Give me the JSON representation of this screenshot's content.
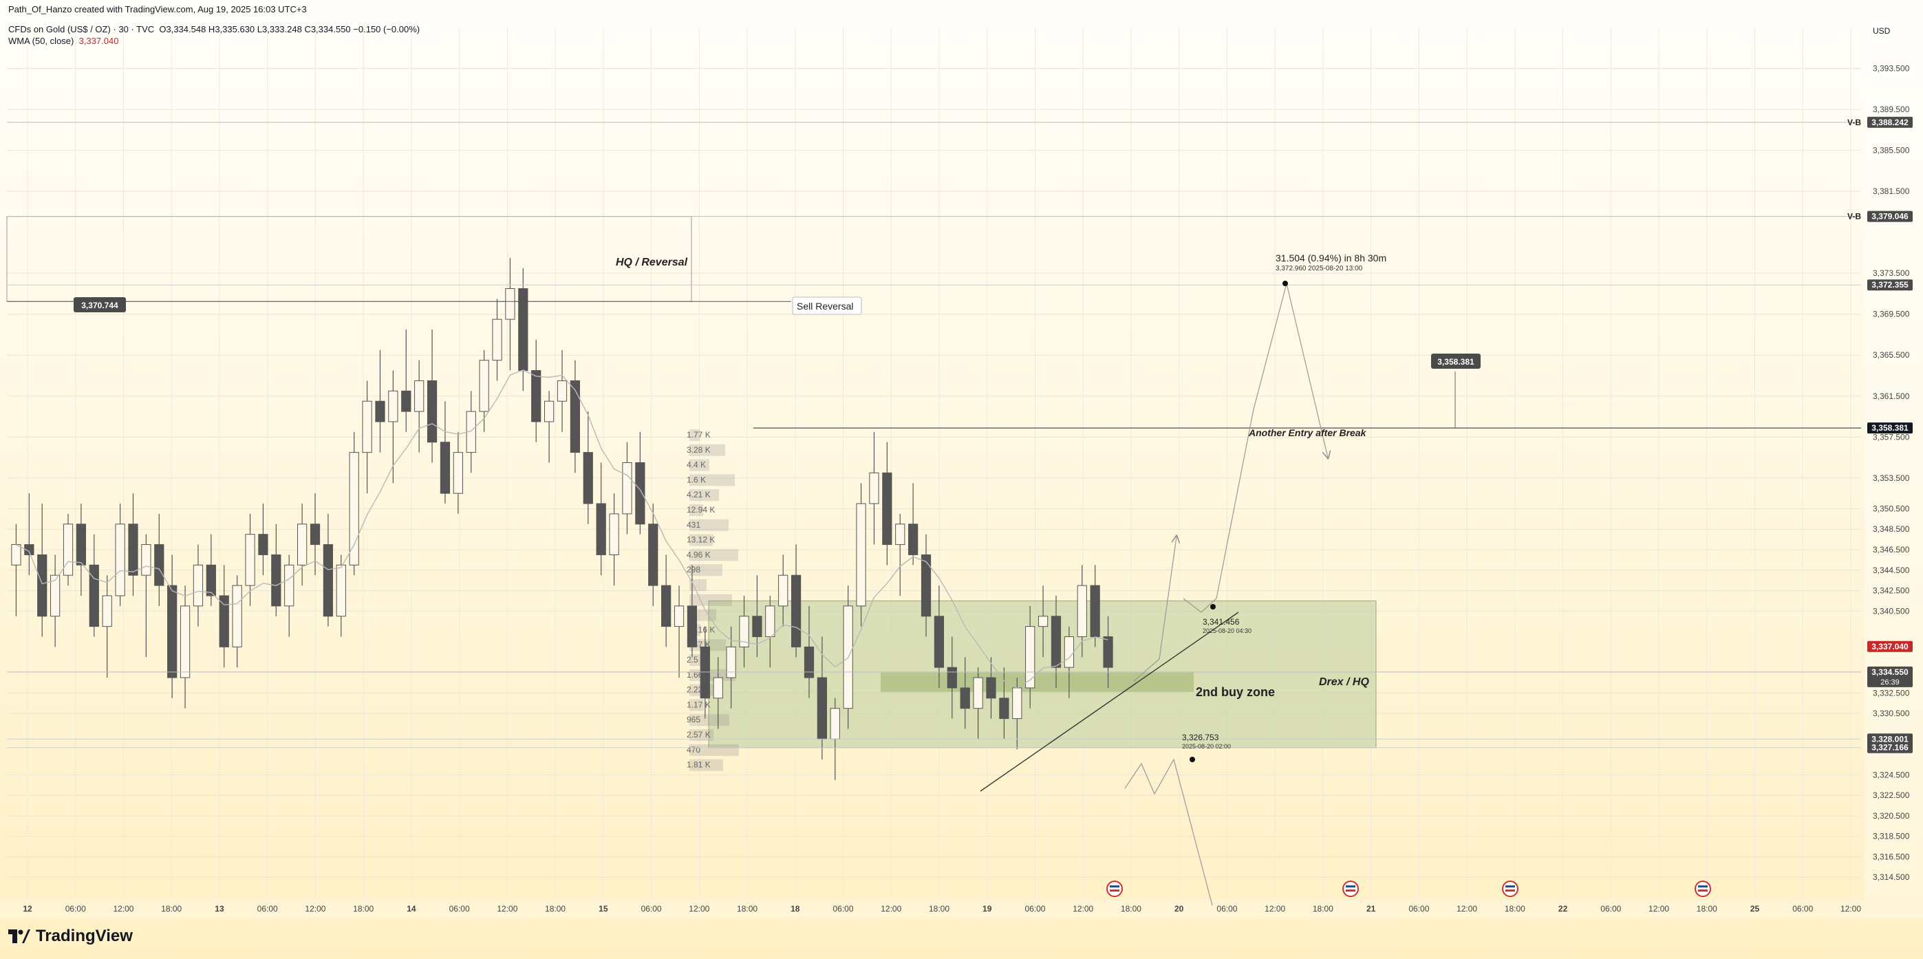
{
  "header": {
    "attribution": "Path_Of_Hanzo created with TradingView.com, Aug 19, 2025 16:03 UTC+3",
    "symbol": "CFDs on Gold (US$ / OZ) · 30 · TVC",
    "ohlc": "O3,334.548  H3,335.630  L3,333.248  C3,334.550  −0.150 (−0.00%)",
    "indicator_label": "WMA (50, close)",
    "indicator_value": "3,337.040"
  },
  "currency": "USD",
  "brand": "TradingView",
  "colors": {
    "bg_top": "#fffefb",
    "bg_bottom": "#fff0c4",
    "candle": "#555555",
    "wma": "#b9b9b9",
    "zone_fill": "#c5d3a4",
    "zone_stroke": "#9aab72",
    "price_red": "#c62828",
    "label_dark": "#4a4a4a"
  },
  "chart_data": {
    "type": "candlestick",
    "symbol": "CFDs on Gold (US$ / OZ)",
    "interval": "30",
    "ylim": [
      3312.5,
      3397.5
    ],
    "y_ticks": [
      3393.5,
      3389.5,
      3385.5,
      3381.5,
      3373.5,
      3369.5,
      3365.5,
      3361.5,
      3357.5,
      3353.5,
      3350.5,
      3348.5,
      3346.5,
      3344.5,
      3342.5,
      3340.5,
      3332.5,
      3330.5,
      3324.5,
      3322.5,
      3320.5,
      3318.5,
      3316.5,
      3314.5
    ],
    "x_ticks": [
      "12",
      "06:00",
      "12:00",
      "18:00",
      "13",
      "06:00",
      "12:00",
      "18:00",
      "14",
      "06:00",
      "12:00",
      "18:00",
      "15",
      "06:00",
      "12:00",
      "18:00",
      "18",
      "06:00",
      "12:00",
      "18:00",
      "19",
      "06:00",
      "12:00",
      "18:00",
      "20",
      "06:00",
      "12:00",
      "18:00",
      "21",
      "06:00",
      "12:00",
      "18:00",
      "22",
      "06:00",
      "12:00",
      "18:00",
      "25",
      "06:00",
      "12:00"
    ],
    "price_labels": [
      {
        "text": "3,388.242",
        "value": 3388.242,
        "tag": "V-B",
        "style": "dark"
      },
      {
        "text": "3,379.046",
        "value": 3379.046,
        "tag": "V-B",
        "style": "dark"
      },
      {
        "text": "3,372.355",
        "value": 3372.355,
        "style": "dark"
      },
      {
        "text": "3,358.381",
        "value": 3358.381,
        "style": "black"
      },
      {
        "text": "3,337.040",
        "value": 3337.04,
        "style": "red"
      },
      {
        "text": "3,334.550",
        "sub": "26:39",
        "value": 3334.55,
        "style": "dark"
      },
      {
        "text": "3,328.001",
        "value": 3328.001,
        "style": "dark"
      },
      {
        "text": "3,327.166",
        "value": 3327.166,
        "style": "dark"
      }
    ],
    "levels": [
      {
        "name": "sell-reversal-level",
        "value": 3370.744,
        "label": "3,370.744"
      },
      {
        "name": "break-entry-level",
        "value": 3358.381,
        "label": "3,358.381"
      }
    ],
    "annotations": [
      {
        "text": "HQ / Reversal"
      },
      {
        "text": "Sell Reversal"
      },
      {
        "text": "Another Entry after Break"
      },
      {
        "text": "2nd buy zone"
      },
      {
        "text": "Drex / HQ"
      }
    ],
    "measure": {
      "text": "31.504 (0.94%) in 8h 30m",
      "sub": "3,372.960    2025-08-20  13:00",
      "value": 3372.96
    },
    "points": [
      {
        "value": "3,341.456",
        "date": "2025-08-20 04:30",
        "price": 3341.456
      },
      {
        "value": "3,326.753",
        "date": "2025-08-20 02:00",
        "price": 3326.753
      }
    ],
    "zone": {
      "top": 3341.5,
      "bottom": 3327.166
    },
    "volume_profile": [
      "1.77 K",
      "3.28 K",
      "4.4 K",
      "1.6 K",
      "4.21 K",
      "12.94 K",
      "431",
      "13.12 K",
      "4.96 K",
      "298",
      "",
      "",
      "",
      "10.16 K",
      "7.47 K",
      "2.5 K",
      "1.66 K",
      "2.22 K",
      "1.17 K",
      "965",
      "2.57 K",
      "470",
      "1.81 K"
    ],
    "candles": [
      [
        3345,
        3349,
        3340,
        3347
      ],
      [
        3347,
        3352,
        3344,
        3346
      ],
      [
        3346,
        3351,
        3338,
        3340
      ],
      [
        3340,
        3346,
        3337,
        3344
      ],
      [
        3344,
        3350,
        3343,
        3349
      ],
      [
        3349,
        3351,
        3342,
        3345
      ],
      [
        3345,
        3348,
        3338,
        3339
      ],
      [
        3339,
        3344,
        3334,
        3342
      ],
      [
        3342,
        3351,
        3341,
        3349
      ],
      [
        3349,
        3352,
        3342,
        3344
      ],
      [
        3344,
        3348,
        3336,
        3347
      ],
      [
        3347,
        3350,
        3341,
        3343
      ],
      [
        3343,
        3346,
        3332,
        3334
      ],
      [
        3334,
        3343,
        3331,
        3341
      ],
      [
        3341,
        3347,
        3339,
        3345
      ],
      [
        3345,
        3348,
        3341,
        3342
      ],
      [
        3342,
        3345,
        3335,
        3337
      ],
      [
        3337,
        3344,
        3335,
        3343
      ],
      [
        3343,
        3350,
        3341,
        3348
      ],
      [
        3348,
        3351,
        3344,
        3346
      ],
      [
        3346,
        3349,
        3340,
        3341
      ],
      [
        3341,
        3346,
        3338,
        3345
      ],
      [
        3345,
        3351,
        3343,
        3349
      ],
      [
        3349,
        3352,
        3344,
        3347
      ],
      [
        3347,
        3350,
        3339,
        3340
      ],
      [
        3340,
        3346,
        3338,
        3345
      ],
      [
        3345,
        3358,
        3344,
        3356
      ],
      [
        3356,
        3363,
        3352,
        3361
      ],
      [
        3361,
        3366,
        3356,
        3359
      ],
      [
        3359,
        3364,
        3353,
        3362
      ],
      [
        3362,
        3368,
        3358,
        3360
      ],
      [
        3360,
        3365,
        3356,
        3363
      ],
      [
        3363,
        3368,
        3355,
        3357
      ],
      [
        3357,
        3361,
        3351,
        3352
      ],
      [
        3352,
        3358,
        3350,
        3356
      ],
      [
        3356,
        3362,
        3354,
        3360
      ],
      [
        3360,
        3366,
        3358,
        3365
      ],
      [
        3365,
        3371,
        3363,
        3369
      ],
      [
        3369,
        3375,
        3364,
        3372
      ],
      [
        3372,
        3374,
        3362,
        3364
      ],
      [
        3364,
        3367,
        3357,
        3359
      ],
      [
        3359,
        3362,
        3355,
        3361
      ],
      [
        3361,
        3366,
        3358,
        3363
      ],
      [
        3363,
        3365,
        3354,
        3356
      ],
      [
        3356,
        3360,
        3349,
        3351
      ],
      [
        3351,
        3355,
        3344,
        3346
      ],
      [
        3346,
        3352,
        3343,
        3350
      ],
      [
        3350,
        3357,
        3348,
        3355
      ],
      [
        3355,
        3358,
        3348,
        3349
      ],
      [
        3349,
        3351,
        3341,
        3343
      ],
      [
        3343,
        3346,
        3337,
        3339
      ],
      [
        3339,
        3343,
        3334,
        3341
      ],
      [
        3341,
        3345,
        3336,
        3337
      ],
      [
        3337,
        3339,
        3330,
        3332
      ],
      [
        3332,
        3336,
        3329,
        3334
      ],
      [
        3334,
        3339,
        3331,
        3337
      ],
      [
        3337,
        3342,
        3335,
        3340
      ],
      [
        3340,
        3344,
        3336,
        3338
      ],
      [
        3338,
        3342,
        3335,
        3341
      ],
      [
        3341,
        3346,
        3339,
        3344
      ],
      [
        3344,
        3347,
        3336,
        3337
      ],
      [
        3337,
        3341,
        3332,
        3334
      ],
      [
        3334,
        3338,
        3326,
        3328
      ],
      [
        3328,
        3332,
        3324,
        3331
      ],
      [
        3331,
        3343,
        3329,
        3341
      ],
      [
        3341,
        3353,
        3339,
        3351
      ],
      [
        3351,
        3358,
        3347,
        3354
      ],
      [
        3354,
        3357,
        3345,
        3347
      ],
      [
        3347,
        3350,
        3342,
        3349
      ],
      [
        3349,
        3353,
        3345,
        3346
      ],
      [
        3346,
        3348,
        3338,
        3340
      ],
      [
        3340,
        3343,
        3333,
        3335
      ],
      [
        3335,
        3338,
        3330,
        3333
      ],
      [
        3333,
        3336,
        3329,
        3331
      ],
      [
        3331,
        3335,
        3328,
        3334
      ],
      [
        3334,
        3336,
        3330,
        3332
      ],
      [
        3332,
        3335,
        3328,
        3330
      ],
      [
        3330,
        3334,
        3327,
        3333
      ],
      [
        3333,
        3341,
        3331,
        3339
      ],
      [
        3339,
        3343,
        3336,
        3340
      ],
      [
        3340,
        3342,
        3333,
        3335
      ],
      [
        3335,
        3339,
        3332,
        3338
      ],
      [
        3338,
        3345,
        3336,
        3343
      ],
      [
        3343,
        3345,
        3337,
        3338
      ],
      [
        3338,
        3340,
        3333,
        3335
      ]
    ]
  }
}
